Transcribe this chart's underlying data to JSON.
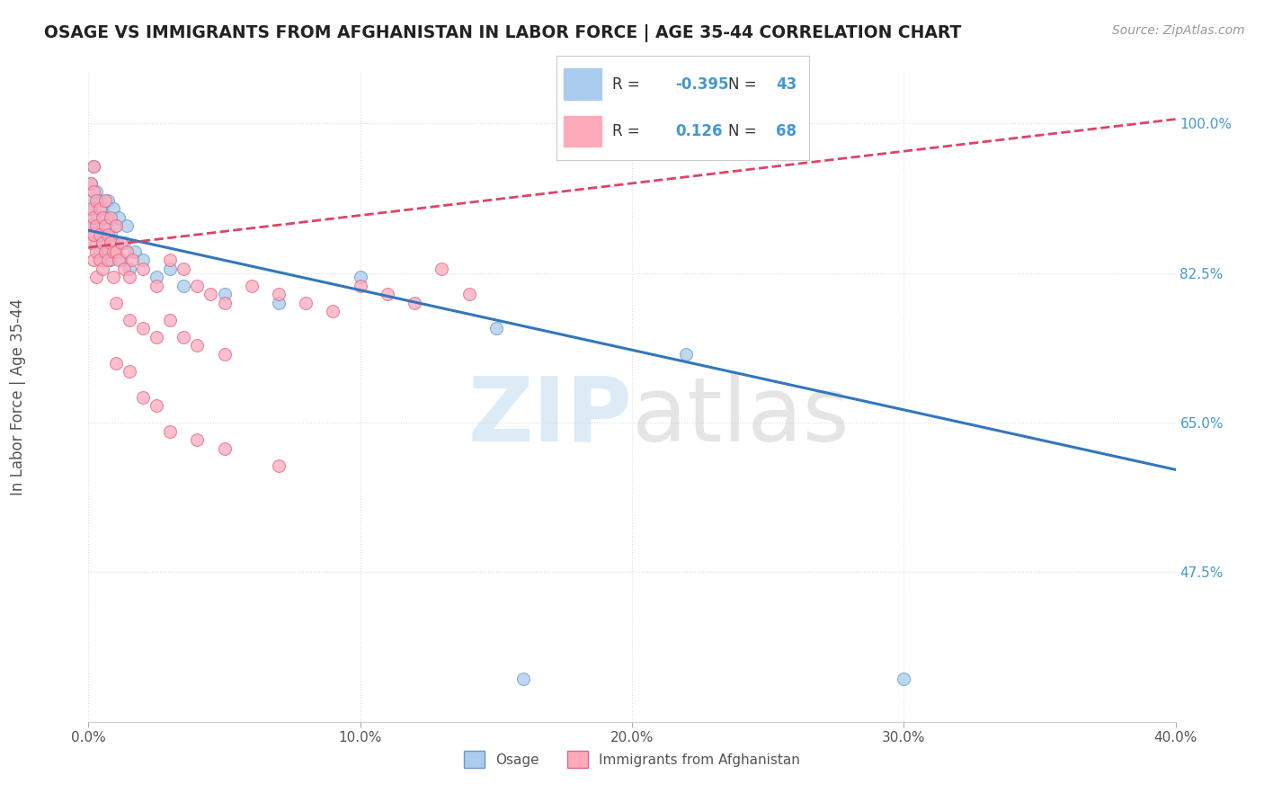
{
  "title": "OSAGE VS IMMIGRANTS FROM AFGHANISTAN IN LABOR FORCE | AGE 35-44 CORRELATION CHART",
  "source": "Source: ZipAtlas.com",
  "ylabel": "In Labor Force | Age 35-44",
  "xlim": [
    0.0,
    0.4
  ],
  "ylim": [
    0.3,
    1.06
  ],
  "xticks": [
    0.0,
    0.1,
    0.2,
    0.3,
    0.4
  ],
  "xtick_labels": [
    "0.0%",
    "10.0%",
    "20.0%",
    "30.0%",
    "40.0%"
  ],
  "yticks": [
    0.475,
    0.65,
    0.825,
    1.0
  ],
  "ytick_labels": [
    "47.5%",
    "65.0%",
    "82.5%",
    "100.0%"
  ],
  "osage_color": "#aaccee",
  "osage_edge": "#6699cc",
  "afghanistan_color": "#ffaabb",
  "afghanistan_edge": "#dd6688",
  "trend_osage_color": "#3377bb",
  "trend_afghanistan_color": "#dd4466",
  "legend_R_osage": "-0.395",
  "legend_N_osage": "43",
  "legend_R_afghanistan": "0.126",
  "legend_N_afghanistan": "68",
  "background_color": "#ffffff",
  "grid_color": "#dddddd",
  "osage_trend_x": [
    0.0,
    0.4
  ],
  "osage_trend_y": [
    0.875,
    0.595
  ],
  "afghanistan_trend_x": [
    0.0,
    0.4
  ],
  "afghanistan_trend_y": [
    0.855,
    1.005
  ],
  "osage_points": [
    [
      0.001,
      0.93
    ],
    [
      0.001,
      0.91
    ],
    [
      0.002,
      0.95
    ],
    [
      0.002,
      0.9
    ],
    [
      0.002,
      0.88
    ],
    [
      0.002,
      0.87
    ],
    [
      0.003,
      0.92
    ],
    [
      0.003,
      0.89
    ],
    [
      0.003,
      0.86
    ],
    [
      0.004,
      0.91
    ],
    [
      0.004,
      0.88
    ],
    [
      0.004,
      0.85
    ],
    [
      0.005,
      0.9
    ],
    [
      0.005,
      0.87
    ],
    [
      0.005,
      0.84
    ],
    [
      0.006,
      0.89
    ],
    [
      0.006,
      0.86
    ],
    [
      0.007,
      0.91
    ],
    [
      0.007,
      0.88
    ],
    [
      0.007,
      0.85
    ],
    [
      0.008,
      0.87
    ],
    [
      0.008,
      0.84
    ],
    [
      0.009,
      0.9
    ],
    [
      0.009,
      0.86
    ],
    [
      0.01,
      0.88
    ],
    [
      0.01,
      0.85
    ],
    [
      0.011,
      0.89
    ],
    [
      0.012,
      0.84
    ],
    [
      0.013,
      0.86
    ],
    [
      0.014,
      0.88
    ],
    [
      0.015,
      0.83
    ],
    [
      0.017,
      0.85
    ],
    [
      0.02,
      0.84
    ],
    [
      0.025,
      0.82
    ],
    [
      0.03,
      0.83
    ],
    [
      0.035,
      0.81
    ],
    [
      0.05,
      0.8
    ],
    [
      0.07,
      0.79
    ],
    [
      0.1,
      0.82
    ],
    [
      0.15,
      0.76
    ],
    [
      0.22,
      0.73
    ],
    [
      0.16,
      0.35
    ],
    [
      0.3,
      0.35
    ]
  ],
  "afghanistan_points": [
    [
      0.001,
      0.93
    ],
    [
      0.001,
      0.9
    ],
    [
      0.001,
      0.88
    ],
    [
      0.001,
      0.86
    ],
    [
      0.002,
      0.95
    ],
    [
      0.002,
      0.92
    ],
    [
      0.002,
      0.89
    ],
    [
      0.002,
      0.87
    ],
    [
      0.002,
      0.84
    ],
    [
      0.003,
      0.91
    ],
    [
      0.003,
      0.88
    ],
    [
      0.003,
      0.85
    ],
    [
      0.003,
      0.82
    ],
    [
      0.004,
      0.9
    ],
    [
      0.004,
      0.87
    ],
    [
      0.004,
      0.84
    ],
    [
      0.005,
      0.89
    ],
    [
      0.005,
      0.86
    ],
    [
      0.005,
      0.83
    ],
    [
      0.006,
      0.91
    ],
    [
      0.006,
      0.88
    ],
    [
      0.006,
      0.85
    ],
    [
      0.007,
      0.87
    ],
    [
      0.007,
      0.84
    ],
    [
      0.008,
      0.89
    ],
    [
      0.008,
      0.86
    ],
    [
      0.009,
      0.85
    ],
    [
      0.009,
      0.82
    ],
    [
      0.01,
      0.88
    ],
    [
      0.01,
      0.85
    ],
    [
      0.011,
      0.84
    ],
    [
      0.012,
      0.86
    ],
    [
      0.013,
      0.83
    ],
    [
      0.014,
      0.85
    ],
    [
      0.015,
      0.82
    ],
    [
      0.016,
      0.84
    ],
    [
      0.02,
      0.83
    ],
    [
      0.025,
      0.81
    ],
    [
      0.03,
      0.84
    ],
    [
      0.035,
      0.83
    ],
    [
      0.04,
      0.81
    ],
    [
      0.045,
      0.8
    ],
    [
      0.05,
      0.79
    ],
    [
      0.06,
      0.81
    ],
    [
      0.07,
      0.8
    ],
    [
      0.08,
      0.79
    ],
    [
      0.09,
      0.78
    ],
    [
      0.1,
      0.81
    ],
    [
      0.11,
      0.8
    ],
    [
      0.12,
      0.79
    ],
    [
      0.13,
      0.83
    ],
    [
      0.14,
      0.8
    ],
    [
      0.01,
      0.79
    ],
    [
      0.015,
      0.77
    ],
    [
      0.02,
      0.76
    ],
    [
      0.025,
      0.75
    ],
    [
      0.03,
      0.77
    ],
    [
      0.035,
      0.75
    ],
    [
      0.04,
      0.74
    ],
    [
      0.05,
      0.73
    ],
    [
      0.01,
      0.72
    ],
    [
      0.015,
      0.71
    ],
    [
      0.02,
      0.68
    ],
    [
      0.025,
      0.67
    ],
    [
      0.03,
      0.64
    ],
    [
      0.04,
      0.63
    ],
    [
      0.05,
      0.62
    ],
    [
      0.07,
      0.6
    ]
  ]
}
